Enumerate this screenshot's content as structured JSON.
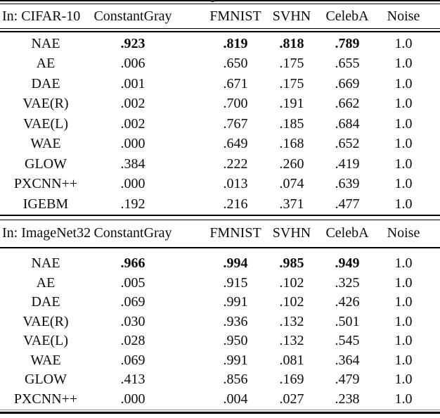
{
  "table": {
    "sections": [
      {
        "header": {
          "in_label": "In: CIFAR-10",
          "columns": [
            "ConstantGray",
            "FMNIST",
            "SVHN",
            "CelebA",
            "Noise"
          ]
        },
        "rows": [
          {
            "model": "NAE",
            "values": [
              ".923",
              ".819",
              ".818",
              ".789",
              "1.0"
            ],
            "bold_values": [
              true,
              true,
              true,
              true,
              false
            ]
          },
          {
            "model": "AE",
            "values": [
              ".006",
              ".650",
              ".175",
              ".655",
              "1.0"
            ]
          },
          {
            "model": "DAE",
            "values": [
              ".001",
              ".671",
              ".175",
              ".669",
              "1.0"
            ]
          },
          {
            "model": "VAE(R)",
            "values": [
              ".002",
              ".700",
              ".191",
              ".662",
              "1.0"
            ]
          },
          {
            "model": "VAE(L)",
            "values": [
              ".002",
              ".767",
              ".185",
              ".684",
              "1.0"
            ]
          },
          {
            "model": "WAE",
            "values": [
              ".000",
              ".649",
              ".168",
              ".652",
              "1.0"
            ]
          },
          {
            "model": "GLOW",
            "values": [
              ".384",
              ".222",
              ".260",
              ".419",
              "1.0"
            ]
          },
          {
            "model": "PXCNN++",
            "values": [
              ".000",
              ".013",
              ".074",
              ".639",
              "1.0"
            ]
          },
          {
            "model": "IGEBM",
            "values": [
              ".192",
              ".216",
              ".371",
              ".477",
              "1.0"
            ]
          }
        ]
      },
      {
        "header": {
          "in_label": "In: ImageNet32",
          "columns": [
            "ConstantGray",
            "FMNIST",
            "SVHN",
            "CelebA",
            "Noise"
          ]
        },
        "rows": [
          {
            "model": "NAE",
            "values": [
              ".966",
              ".994",
              ".985",
              ".949",
              "1.0"
            ],
            "bold_values": [
              true,
              true,
              true,
              true,
              false
            ]
          },
          {
            "model": "AE",
            "values": [
              ".005",
              ".915",
              ".102",
              ".325",
              "1.0"
            ]
          },
          {
            "model": "DAE",
            "values": [
              ".069",
              ".991",
              ".102",
              ".426",
              "1.0"
            ]
          },
          {
            "model": "VAE(R)",
            "values": [
              ".030",
              ".936",
              ".132",
              ".501",
              "1.0"
            ]
          },
          {
            "model": "VAE(L)",
            "values": [
              ".028",
              ".950",
              ".132",
              ".545",
              "1.0"
            ]
          },
          {
            "model": "WAE",
            "values": [
              ".069",
              ".991",
              ".081",
              ".364",
              "1.0"
            ]
          },
          {
            "model": "GLOW",
            "values": [
              ".413",
              ".856",
              ".169",
              ".479",
              "1.0"
            ]
          },
          {
            "model": "PXCNN++",
            "values": [
              ".000",
              ".004",
              ".027",
              ".238",
              "1.0"
            ]
          }
        ]
      }
    ]
  }
}
